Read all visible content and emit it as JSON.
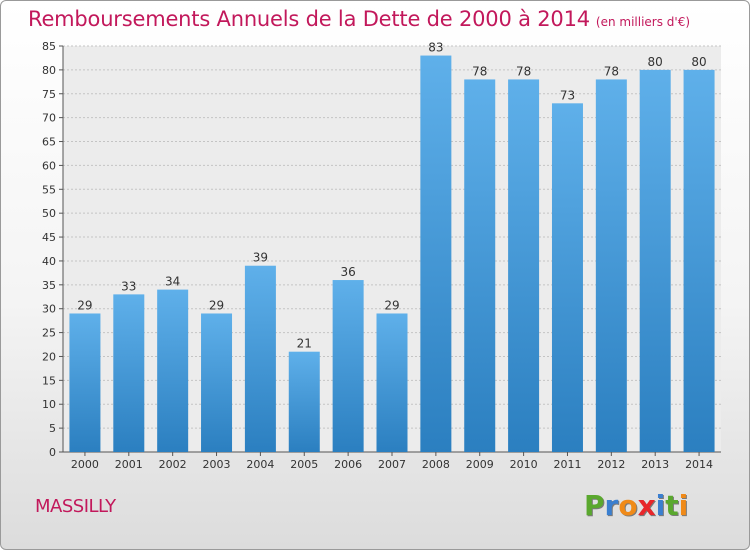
{
  "header": {
    "title": "Remboursements Annuels de la Dette de 2000 à 2014",
    "subtitle": "(en milliers d'€)"
  },
  "footer": {
    "place": "MASSILLY",
    "logo": "Proxiti"
  },
  "colors": {
    "title": "#c2185b",
    "bar_top": "#5fb0ea",
    "bar_bottom": "#2b7fc0",
    "logo_letters": [
      "#5aa82e",
      "#3a7fd0",
      "#f08a18",
      "#e8262a",
      "#3a7fd0",
      "#5aa82e",
      "#f08a18"
    ]
  },
  "chart_data": {
    "type": "bar",
    "categories": [
      "2000",
      "2001",
      "2002",
      "2003",
      "2004",
      "2005",
      "2006",
      "2007",
      "2008",
      "2009",
      "2010",
      "2011",
      "2012",
      "2013",
      "2014"
    ],
    "values": [
      29,
      33,
      34,
      29,
      39,
      21,
      36,
      29,
      83,
      78,
      78,
      73,
      78,
      80,
      80
    ],
    "ylim": [
      0,
      85
    ],
    "yticks": [
      0,
      5,
      10,
      15,
      20,
      25,
      30,
      35,
      40,
      45,
      50,
      55,
      60,
      65,
      70,
      75,
      80,
      85
    ],
    "grid": true,
    "data_labels": true
  }
}
